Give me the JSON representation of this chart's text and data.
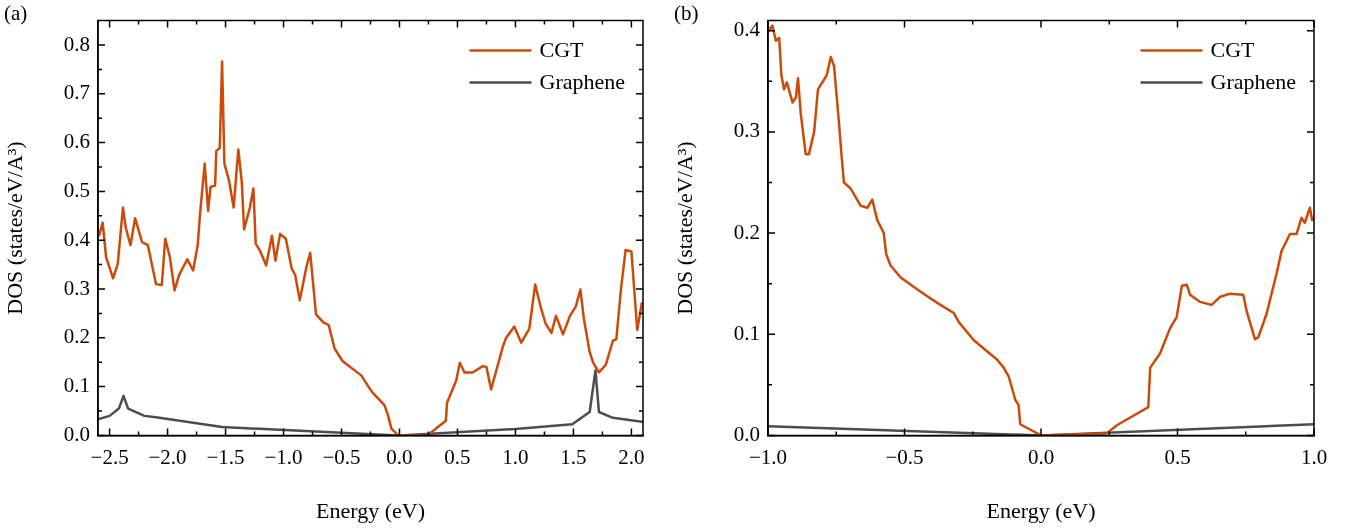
{
  "chart_data": [
    {
      "type": "line",
      "xlabel": "Energy (eV)",
      "ylabel": "DOS (states/eV/A³)",
      "annotations": [
        "(a)"
      ],
      "legend": "top right",
      "xlim": [
        -2.6,
        2.1
      ],
      "xticks": [
        {
          "value": -2.5,
          "label": "−2.5"
        },
        {
          "value": -2.25,
          "label": null
        },
        {
          "value": -2.0,
          "label": "−2.0"
        },
        {
          "value": -1.75,
          "label": null
        },
        {
          "value": -1.5,
          "label": "−1.5"
        },
        {
          "value": -1.25,
          "label": null
        },
        {
          "value": -1.0,
          "label": "−1.0"
        },
        {
          "value": -0.75,
          "label": null
        },
        {
          "value": -0.5,
          "label": "−0.5"
        },
        {
          "value": -0.25,
          "label": null
        },
        {
          "value": 0.0,
          "label": "0.0"
        },
        {
          "value": 0.25,
          "label": null
        },
        {
          "value": 0.5,
          "label": "0.5"
        },
        {
          "value": 0.75,
          "label": null
        },
        {
          "value": 1.0,
          "label": "1.0"
        },
        {
          "value": 1.25,
          "label": null
        },
        {
          "value": 1.5,
          "label": "1.5"
        },
        {
          "value": 1.75,
          "label": null
        },
        {
          "value": 2.0,
          "label": "2.0"
        }
      ],
      "ylim": [
        0,
        0.85
      ],
      "yticks": [
        {
          "value": 0.0,
          "label": "0.0"
        },
        {
          "value": 0.05,
          "label": null
        },
        {
          "value": 0.1,
          "label": "0.1"
        },
        {
          "value": 0.15,
          "label": null
        },
        {
          "value": 0.2,
          "label": "0.2"
        },
        {
          "value": 0.25,
          "label": null
        },
        {
          "value": 0.3,
          "label": "0.3"
        },
        {
          "value": 0.35,
          "label": null
        },
        {
          "value": 0.4,
          "label": "0.4"
        },
        {
          "value": 0.45,
          "label": null
        },
        {
          "value": 0.5,
          "label": "0.5"
        },
        {
          "value": 0.55,
          "label": null
        },
        {
          "value": 0.6,
          "label": "0.6"
        },
        {
          "value": 0.65,
          "label": null
        },
        {
          "value": 0.7,
          "label": "0.7"
        },
        {
          "value": 0.75,
          "label": null
        },
        {
          "value": 0.8,
          "label": "0.8"
        }
      ],
      "series": [
        {
          "name": "CGT",
          "color": "#cc4a0a",
          "x": [
            -2.59,
            -2.56,
            -2.53,
            -2.47,
            -2.43,
            -2.385,
            -2.36,
            -2.32,
            -2.28,
            -2.22,
            -2.17,
            -2.1,
            -2.05,
            -2.02,
            -1.98,
            -1.94,
            -1.9,
            -1.83,
            -1.78,
            -1.74,
            -1.72,
            -1.68,
            -1.65,
            -1.63,
            -1.59,
            -1.58,
            -1.55,
            -1.53,
            -1.51,
            -1.47,
            -1.43,
            -1.39,
            -1.36,
            -1.34,
            -1.29,
            -1.26,
            -1.24,
            -1.2,
            -1.15,
            -1.1,
            -1.07,
            -1.03,
            -0.98,
            -0.93,
            -0.9,
            -0.86,
            -0.8,
            -0.77,
            -0.72,
            -0.66,
            -0.61,
            -0.56,
            -0.49,
            -0.33,
            -0.26,
            -0.23,
            -0.13,
            -0.1,
            -0.07,
            -0.01,
            0.24,
            0.4,
            0.41,
            0.49,
            0.52,
            0.56,
            0.63,
            0.72,
            0.75,
            0.79,
            0.89,
            0.92,
            0.99,
            1.05,
            1.12,
            1.17,
            1.22,
            1.26,
            1.31,
            1.35,
            1.41,
            1.47,
            1.52,
            1.56,
            1.59,
            1.64,
            1.67,
            1.72,
            1.78,
            1.84,
            1.87,
            1.91,
            1.95,
            2.0,
            2.01,
            2.05,
            2.09
          ],
          "values": [
            0.41,
            0.436,
            0.365,
            0.322,
            0.351,
            0.467,
            0.425,
            0.39,
            0.445,
            0.396,
            0.39,
            0.31,
            0.308,
            0.403,
            0.365,
            0.297,
            0.329,
            0.361,
            0.338,
            0.39,
            0.454,
            0.557,
            0.46,
            0.509,
            0.512,
            0.583,
            0.589,
            0.766,
            0.557,
            0.522,
            0.467,
            0.586,
            0.519,
            0.422,
            0.467,
            0.506,
            0.393,
            0.377,
            0.348,
            0.409,
            0.358,
            0.413,
            0.403,
            0.342,
            0.329,
            0.277,
            0.348,
            0.374,
            0.248,
            0.232,
            0.226,
            0.178,
            0.152,
            0.123,
            0.097,
            0.087,
            0.062,
            0.042,
            0.014,
            0.0,
            0.0,
            0.03,
            0.067,
            0.113,
            0.149,
            0.129,
            0.129,
            0.142,
            0.14,
            0.094,
            0.181,
            0.2,
            0.223,
            0.19,
            0.219,
            0.309,
            0.261,
            0.229,
            0.21,
            0.245,
            0.207,
            0.245,
            0.264,
            0.299,
            0.239,
            0.171,
            0.149,
            0.129,
            0.145,
            0.194,
            0.197,
            0.3,
            0.38,
            0.377,
            0.345,
            0.216,
            0.271
          ]
        },
        {
          "name": "Graphene",
          "color": "#4d4d4d",
          "x": [
            -2.6,
            -2.5,
            -2.42,
            -2.38,
            -2.34,
            -2.2,
            -2.1,
            -1.53,
            -0.37,
            0.0,
            1.0,
            1.49,
            1.64,
            1.69,
            1.72,
            1.84,
            2.09
          ],
          "values": [
            0.033,
            0.04,
            0.055,
            0.081,
            0.055,
            0.04,
            0.037,
            0.017,
            0.004,
            0.0,
            0.013,
            0.023,
            0.048,
            0.133,
            0.048,
            0.036,
            0.028
          ]
        }
      ]
    },
    {
      "type": "line",
      "xlabel": "Energy (eV)",
      "ylabel": "DOS (states/eV/A³)",
      "annotations": [
        "(b)"
      ],
      "legend": "top right",
      "xlim": [
        -1.0,
        1.0
      ],
      "xticks": [
        {
          "value": -1.0,
          "label": "−1.0"
        },
        {
          "value": -0.75,
          "label": null
        },
        {
          "value": -0.5,
          "label": "−0.5"
        },
        {
          "value": -0.25,
          "label": null
        },
        {
          "value": 0.0,
          "label": "0.0"
        },
        {
          "value": 0.25,
          "label": null
        },
        {
          "value": 0.5,
          "label": "0.5"
        },
        {
          "value": 0.75,
          "label": null
        },
        {
          "value": 1.0,
          "label": "1.0"
        }
      ],
      "ylim": [
        0,
        0.41
      ],
      "yticks": [
        {
          "value": 0.0,
          "label": "0.0"
        },
        {
          "value": 0.05,
          "label": null
        },
        {
          "value": 0.1,
          "label": "0.1"
        },
        {
          "value": 0.15,
          "label": null
        },
        {
          "value": 0.2,
          "label": "0.2"
        },
        {
          "value": 0.25,
          "label": null
        },
        {
          "value": 0.3,
          "label": "0.3"
        },
        {
          "value": 0.35,
          "label": null
        },
        {
          "value": 0.4,
          "label": "0.4"
        }
      ],
      "series": [
        {
          "name": "CGT",
          "color": "#cc4a0a",
          "x": [
            -1.0,
            -0.984,
            -0.971,
            -0.959,
            -0.951,
            -0.941,
            -0.931,
            -0.91,
            -0.898,
            -0.89,
            -0.88,
            -0.862,
            -0.85,
            -0.831,
            -0.817,
            -0.801,
            -0.785,
            -0.77,
            -0.758,
            -0.74,
            -0.731,
            -0.722,
            -0.697,
            -0.661,
            -0.636,
            -0.618,
            -0.6,
            -0.576,
            -0.567,
            -0.551,
            -0.514,
            -0.441,
            -0.38,
            -0.32,
            -0.301,
            -0.246,
            -0.197,
            -0.161,
            -0.137,
            -0.118,
            -0.094,
            -0.082,
            -0.076,
            0.0,
            0.241,
            0.278,
            0.393,
            0.4,
            0.436,
            0.473,
            0.497,
            0.516,
            0.534,
            0.546,
            0.582,
            0.625,
            0.656,
            0.692,
            0.741,
            0.753,
            0.784,
            0.796,
            0.826,
            0.863,
            0.881,
            0.912,
            0.936,
            0.954,
            0.966,
            0.985,
            0.993,
            1.0
          ],
          "values": [
            0.399,
            0.405,
            0.39,
            0.393,
            0.356,
            0.342,
            0.349,
            0.329,
            0.334,
            0.353,
            0.318,
            0.278,
            0.278,
            0.3,
            0.342,
            0.349,
            0.356,
            0.374,
            0.365,
            0.309,
            0.278,
            0.25,
            0.244,
            0.227,
            0.225,
            0.233,
            0.213,
            0.2,
            0.179,
            0.168,
            0.156,
            0.142,
            0.131,
            0.121,
            0.112,
            0.094,
            0.083,
            0.075,
            0.067,
            0.058,
            0.035,
            0.03,
            0.011,
            0.0,
            0.002,
            0.01,
            0.028,
            0.067,
            0.081,
            0.106,
            0.117,
            0.148,
            0.149,
            0.139,
            0.132,
            0.129,
            0.137,
            0.14,
            0.139,
            0.123,
            0.095,
            0.097,
            0.12,
            0.16,
            0.182,
            0.199,
            0.199,
            0.215,
            0.21,
            0.225,
            0.213,
            0.215
          ]
        },
        {
          "name": "Graphene",
          "color": "#4d4d4d",
          "x": [
            -1.0,
            0.0,
            1.0
          ],
          "values": [
            0.009,
            0.0,
            0.011
          ]
        }
      ]
    }
  ]
}
